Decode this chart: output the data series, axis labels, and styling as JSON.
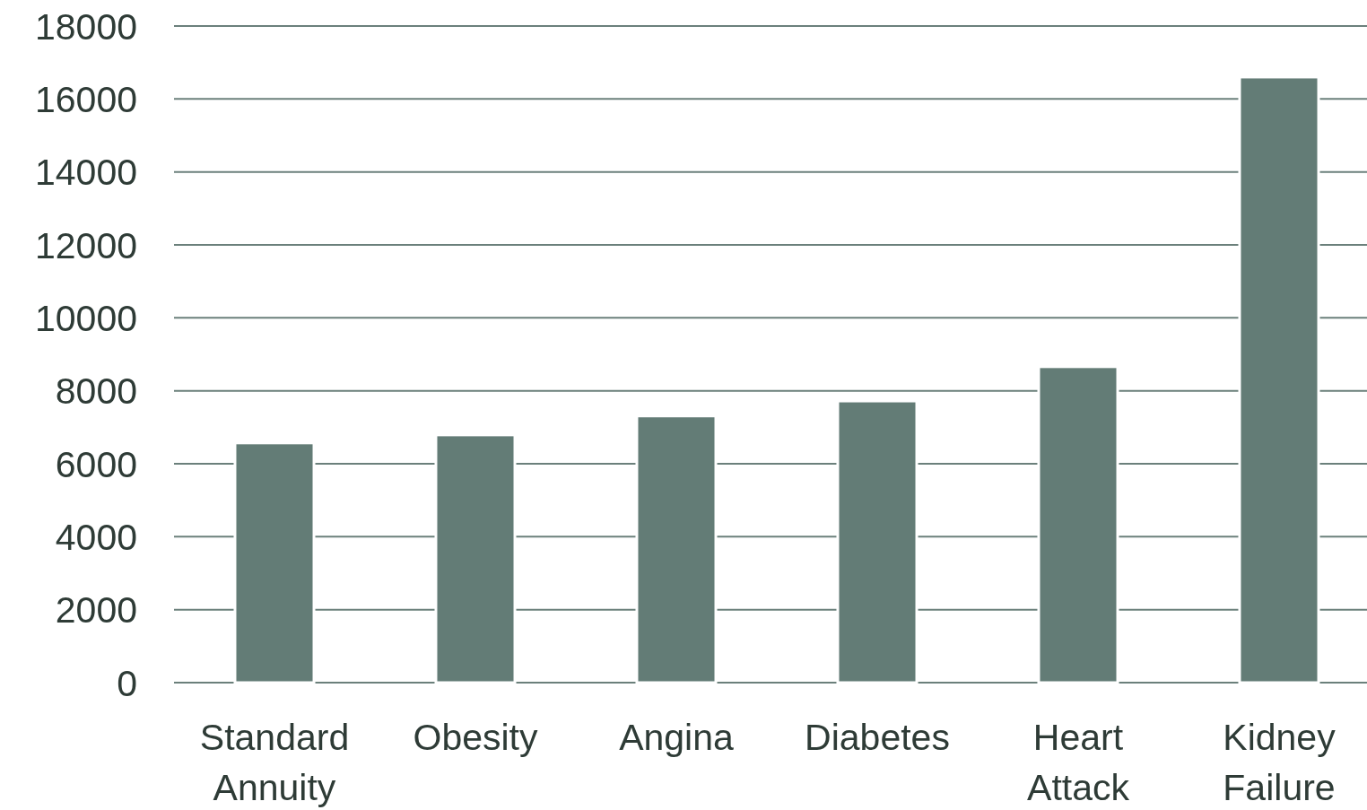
{
  "chart_data": {
    "type": "bar",
    "categories": [
      "Standard Annuity",
      "Obesity",
      "Angina",
      "Diabetes",
      "Heart Attack",
      "Kidney Failure"
    ],
    "values": [
      6570,
      6790,
      7310,
      7720,
      8660,
      16600
    ],
    "color": "#637c76",
    "ylim": [
      0,
      18000
    ],
    "yticks": [
      0,
      2000,
      4000,
      6000,
      8000,
      10000,
      12000,
      14000,
      16000,
      18000
    ],
    "grid": "y"
  }
}
